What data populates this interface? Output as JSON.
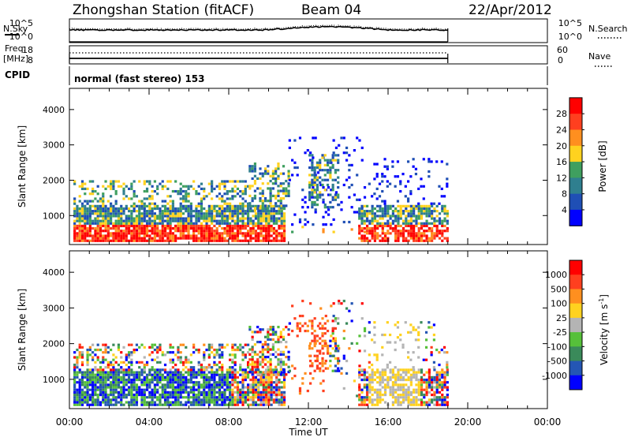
{
  "header": {
    "title": "Zhongshan Station (fitACF)",
    "beam": "Beam 04",
    "date": "22/Apr/2012"
  },
  "strip_labels": {
    "nsky": "N.Sky",
    "nsearch": "N.Search",
    "freq_line1": "Freq.",
    "freq_line2": "[MHz]",
    "nave": "Nave",
    "cpid": "CPID",
    "cpid_value": "normal (fast stereo) 153"
  },
  "strip_ticks": {
    "noise_left": [
      "10^5",
      "10^0"
    ],
    "noise_right": [
      "10^5",
      "10^0"
    ],
    "freq_left": [
      "18",
      "8"
    ],
    "nave_right": [
      "60",
      "0"
    ]
  },
  "chart_data": [
    {
      "type": "heatmap",
      "name": "power",
      "ylabel": "Slant Range [km]",
      "xlabel": "",
      "xlim": [
        0,
        24
      ],
      "ylim": [
        180,
        4600
      ],
      "y_ticks": [
        "4000",
        "3000",
        "2000",
        "1000"
      ],
      "y_tick_values": [
        4000,
        3000,
        2000,
        1000
      ],
      "colorbar": {
        "label": "Power [dB]",
        "ticks": [
          "28",
          "24",
          "20",
          "16",
          "12",
          "8",
          "4"
        ],
        "tick_values": [
          28,
          24,
          20,
          16,
          12,
          8,
          4
        ],
        "range": [
          0,
          32
        ],
        "colors": [
          "#0000ff",
          "#1f4fb5",
          "#2f7f8f",
          "#3f9f5f",
          "#ffd21f",
          "#ff8f1f",
          "#ff3f1f",
          "#ff0000"
        ]
      },
      "data_extent_hours": [
        0,
        19
      ]
    },
    {
      "type": "heatmap",
      "name": "velocity",
      "ylabel": "Slant Range [km]",
      "xlabel": "Time UT",
      "xlim": [
        0,
        24
      ],
      "ylim": [
        180,
        4600
      ],
      "x_ticks": [
        "00:00",
        "04:00",
        "08:00",
        "12:00",
        "16:00",
        "20:00",
        "00:00"
      ],
      "x_tick_values": [
        0,
        4,
        8,
        12,
        16,
        20,
        24
      ],
      "y_ticks": [
        "4000",
        "3000",
        "2000",
        "1000"
      ],
      "y_tick_values": [
        4000,
        3000,
        2000,
        1000
      ],
      "colorbar": {
        "label": "Velocity [m s^-1]",
        "label_main": "Velocity",
        "label_unit": "[m s",
        "label_exp": "-1",
        "label_close": "]",
        "ticks": [
          "1000",
          "500",
          "100",
          "25",
          "-25",
          "-100",
          "-500",
          "-1000"
        ],
        "colors": [
          "#0000ff",
          "#2456b4",
          "#3a8a5a",
          "#56c03a",
          "#b4b4b4",
          "#ffd21f",
          "#ff8f1f",
          "#ff3f1f",
          "#ff0000"
        ]
      },
      "data_extent_hours": [
        0,
        19
      ]
    }
  ]
}
